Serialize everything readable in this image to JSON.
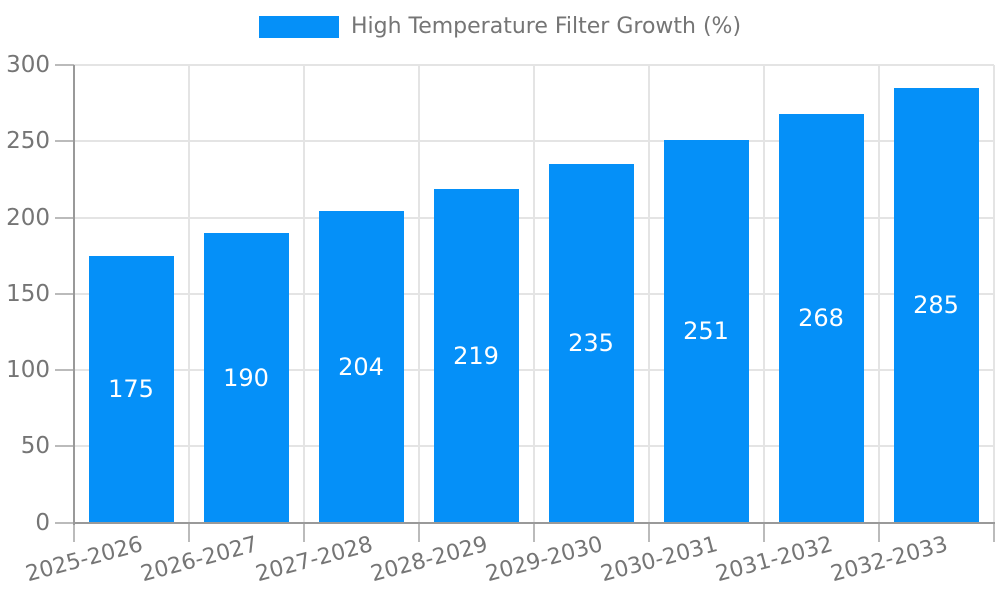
{
  "legend": {
    "label": "High Temperature Filter Growth (%)"
  },
  "colors": {
    "bar": "#0590f8",
    "legend_text": "#757575",
    "axis_label": "#757575",
    "value_label": "#ffffff",
    "grid": "#e4e4e4",
    "axis_line": "#999999",
    "tick": "#bbbbbb",
    "background": "#ffffff"
  },
  "chart_data": {
    "type": "bar",
    "categories": [
      "2025-2026",
      "2026-2027",
      "2027-2028",
      "2028-2029",
      "2029-2030",
      "2030-2031",
      "2031-2032",
      "2032-2033"
    ],
    "values": [
      175,
      190,
      204,
      219,
      235,
      251,
      268,
      285
    ],
    "title": "",
    "legend_entries": [
      "High Temperature Filter Growth (%)"
    ],
    "xlabel": "",
    "ylabel": "",
    "ylim": [
      0,
      300
    ],
    "yticks": [
      0,
      50,
      100,
      150,
      200,
      250,
      300
    ],
    "grid": true,
    "legend_position": "top-center",
    "x_label_rotation_deg": -15,
    "value_labels": "inside-center"
  }
}
